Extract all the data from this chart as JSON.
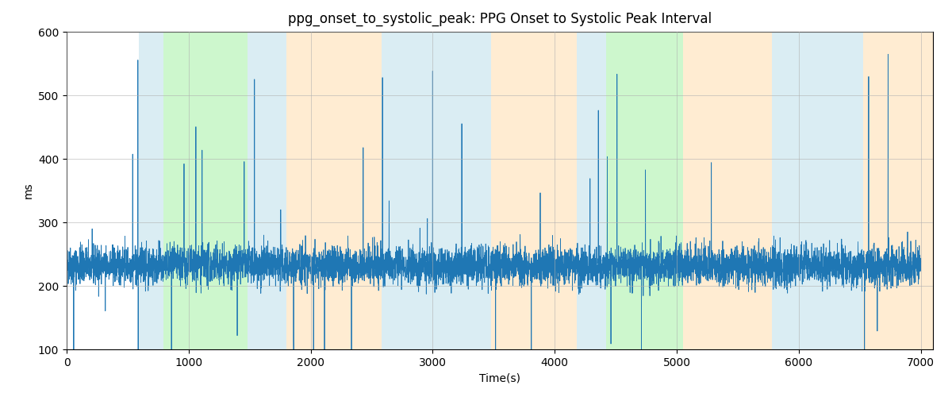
{
  "title": "ppg_onset_to_systolic_peak: PPG Onset to Systolic Peak Interval",
  "xlabel": "Time(s)",
  "ylabel": "ms",
  "xlim": [
    0,
    7100
  ],
  "ylim": [
    100,
    600
  ],
  "yticks": [
    100,
    200,
    300,
    400,
    500,
    600
  ],
  "xticks": [
    0,
    1000,
    2000,
    3000,
    4000,
    5000,
    6000,
    7000
  ],
  "line_color": "#1f77b4",
  "line_width": 0.6,
  "background_color": "#ffffff",
  "grid_color": "#b0b0b0",
  "bands": [
    {
      "xmin": 590,
      "xmax": 790,
      "color": "#add8e6",
      "alpha": 0.45
    },
    {
      "xmin": 790,
      "xmax": 1480,
      "color": "#90ee90",
      "alpha": 0.45
    },
    {
      "xmin": 1480,
      "xmax": 1800,
      "color": "#add8e6",
      "alpha": 0.45
    },
    {
      "xmin": 1800,
      "xmax": 2580,
      "color": "#ffdead",
      "alpha": 0.55
    },
    {
      "xmin": 2580,
      "xmax": 3480,
      "color": "#add8e6",
      "alpha": 0.45
    },
    {
      "xmin": 3480,
      "xmax": 4180,
      "color": "#ffdead",
      "alpha": 0.55
    },
    {
      "xmin": 4180,
      "xmax": 4420,
      "color": "#add8e6",
      "alpha": 0.45
    },
    {
      "xmin": 4420,
      "xmax": 5050,
      "color": "#90ee90",
      "alpha": 0.45
    },
    {
      "xmin": 5050,
      "xmax": 5780,
      "color": "#ffdead",
      "alpha": 0.55
    },
    {
      "xmin": 5780,
      "xmax": 6530,
      "color": "#add8e6",
      "alpha": 0.45
    },
    {
      "xmin": 6530,
      "xmax": 7100,
      "color": "#ffdead",
      "alpha": 0.55
    }
  ],
  "seed": 42,
  "n_points": 7000,
  "base_value": 232,
  "noise_std": 15,
  "spike_probability": 0.008,
  "spike_magnitude_min": 60,
  "spike_magnitude_max": 350,
  "title_fontsize": 12,
  "label_fontsize": 10,
  "tick_fontsize": 10,
  "figsize": [
    12.0,
    5.0
  ],
  "dpi": 100
}
